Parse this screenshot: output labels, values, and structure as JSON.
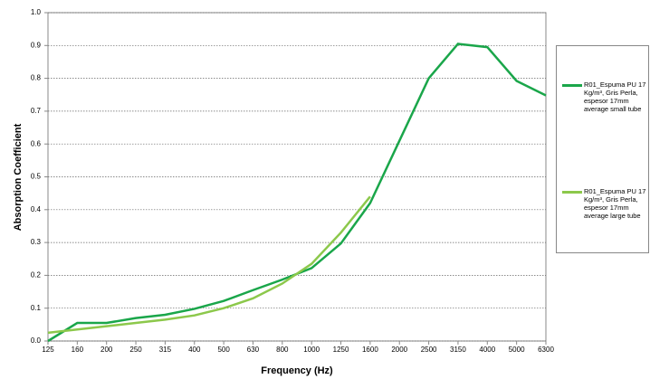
{
  "chart_data": {
    "type": "line",
    "x_label": "Frequency (Hz)",
    "y_label": "Absorption  Coefficient",
    "categories": [
      "125",
      "160",
      "200",
      "250",
      "315",
      "400",
      "500",
      "630",
      "800",
      "1000",
      "1250",
      "1600",
      "2000",
      "2500",
      "3150",
      "4000",
      "5000",
      "6300"
    ],
    "series": [
      {
        "name": "R01_Espuma PU 17 Kg/m³, Gris Perla, espesor 17mm average small tube",
        "color": "#1aa64a",
        "values": [
          0.0,
          0.055,
          0.055,
          0.07,
          0.08,
          0.098,
          0.122,
          0.155,
          0.187,
          0.222,
          0.297,
          0.42,
          0.61,
          0.8,
          0.905,
          0.895,
          0.792,
          0.748
        ]
      },
      {
        "name": "R01_Espuma PU 17 Kg/m³, Gris Perla, espesor 17mm average large tube",
        "color": "#8cc84b",
        "values": [
          0.025,
          0.035,
          0.045,
          0.055,
          0.065,
          0.078,
          0.1,
          0.13,
          0.175,
          0.235,
          0.33,
          0.44,
          null,
          null,
          null,
          null,
          null,
          null
        ]
      }
    ],
    "ylim": [
      0,
      1
    ],
    "yticks": [
      {
        "value": 0,
        "label": "0.0"
      },
      0.1,
      0.2,
      0.3,
      0.4,
      0.5,
      0.6,
      0.7,
      0.8,
      0.9,
      {
        "value": 1,
        "label": "1.0"
      }
    ],
    "grid": true,
    "legend": "right"
  }
}
